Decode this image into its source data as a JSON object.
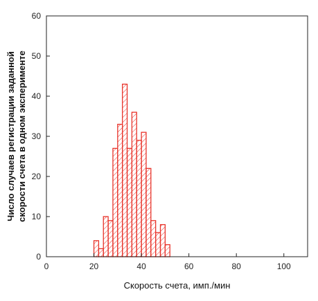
{
  "chart_data": {
    "type": "bar",
    "xlabel": "Скорость счета, имп./мин",
    "ylabel_line1": "Число случаев регистрации заданной",
    "ylabel_line2": "скорости счета в одном эксперименте",
    "xlim": [
      0,
      110
    ],
    "ylim": [
      0,
      60
    ],
    "x_ticks": [
      0,
      20,
      40,
      60,
      80,
      100
    ],
    "y_ticks": [
      0,
      10,
      20,
      30,
      40,
      50,
      60
    ],
    "bin_width": 2,
    "bins": [
      {
        "x": 21,
        "count": 4
      },
      {
        "x": 23,
        "count": 2
      },
      {
        "x": 25,
        "count": 10
      },
      {
        "x": 27,
        "count": 9
      },
      {
        "x": 29,
        "count": 27
      },
      {
        "x": 31,
        "count": 33
      },
      {
        "x": 33,
        "count": 43
      },
      {
        "x": 35,
        "count": 27
      },
      {
        "x": 37,
        "count": 36
      },
      {
        "x": 39,
        "count": 29
      },
      {
        "x": 41,
        "count": 31
      },
      {
        "x": 43,
        "count": 22
      },
      {
        "x": 45,
        "count": 9
      },
      {
        "x": 47,
        "count": 6
      },
      {
        "x": 49,
        "count": 8
      },
      {
        "x": 51,
        "count": 3
      }
    ],
    "bar_color": "#e8332a",
    "grid": false
  }
}
